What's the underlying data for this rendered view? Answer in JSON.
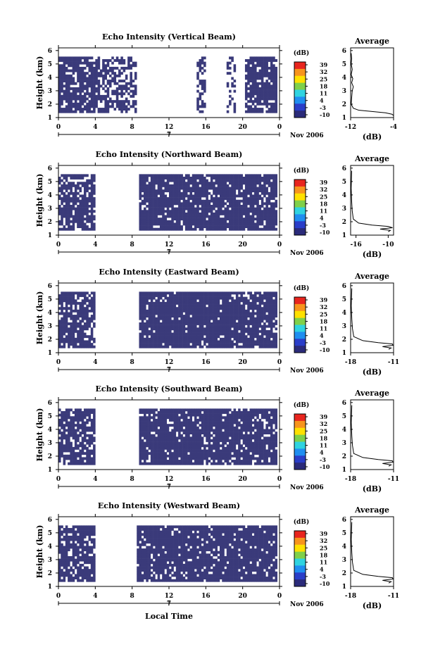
{
  "chart_data": {
    "type": "heatmap",
    "x_axis_label": "Local Time",
    "day_label": "7",
    "month_label": "Nov 2006",
    "y_axis_label": "Height (km)",
    "x_ticks": [
      "0",
      "4",
      "8",
      "12",
      "16",
      "20",
      "0"
    ],
    "y_ticks": [
      "1",
      "2",
      "3",
      "4",
      "5",
      "6"
    ],
    "xlim": [
      0,
      24
    ],
    "ylim": [
      1,
      6.2
    ],
    "heatmap_color": "#3a3a7a",
    "colorbar": {
      "label": "(dB)",
      "ticks": [
        "39",
        "32",
        "25",
        "18",
        "11",
        "4",
        "-3",
        "-10"
      ],
      "colors": [
        "#e8251e",
        "#f7941d",
        "#ffe100",
        "#7fd04a",
        "#2fd3e0",
        "#1f8ef0",
        "#2a3ec8",
        "#2b2b7a"
      ]
    },
    "profile_title": "Average",
    "profile_xlabel": "(dB)",
    "panels": [
      {
        "title": "Echo Intensity (Vertical Beam)",
        "profile_xticks": [
          "-12",
          "-4"
        ],
        "profile_xlim": [
          -12,
          -4
        ],
        "profile_curve": [
          [
            -11.9,
            5.8
          ],
          [
            -11.8,
            5.4
          ],
          [
            -11.9,
            5.0
          ],
          [
            -11.7,
            4.6
          ],
          [
            -11.9,
            4.2
          ],
          [
            -11.6,
            3.9
          ],
          [
            -11.8,
            3.6
          ],
          [
            -11.5,
            3.3
          ],
          [
            -11.7,
            3.0
          ],
          [
            -11.8,
            2.5
          ],
          [
            -11.9,
            2.0
          ],
          [
            -11.5,
            1.7
          ],
          [
            -10.5,
            1.55
          ],
          [
            -8.0,
            1.45
          ],
          [
            -5.5,
            1.35
          ],
          [
            -4.3,
            1.25
          ],
          [
            -4.0,
            1.15
          ]
        ],
        "segments": [
          [
            0,
            4.5,
            0.84
          ],
          [
            4.5,
            8.5,
            0.6
          ],
          [
            14.9,
            16.1,
            0.55
          ],
          [
            18.3,
            19.2,
            0.35
          ],
          [
            20.3,
            23.8,
            0.82
          ]
        ]
      },
      {
        "title": "Echo Intensity (Northward Beam)",
        "profile_xticks": [
          "-16",
          "-10"
        ],
        "profile_xlim": [
          -17,
          -9
        ],
        "profile_curve": [
          [
            -16.8,
            5.8
          ],
          [
            -16.9,
            4.5
          ],
          [
            -16.8,
            3.5
          ],
          [
            -16.7,
            2.8
          ],
          [
            -16.5,
            2.2
          ],
          [
            -15.5,
            1.9
          ],
          [
            -13.0,
            1.75
          ],
          [
            -10.0,
            1.65
          ],
          [
            -9.2,
            1.55
          ],
          [
            -11.5,
            1.45
          ],
          [
            -9.6,
            1.35
          ],
          [
            -10.0,
            1.25
          ]
        ],
        "segments": [
          [
            0,
            4.1,
            0.78
          ],
          [
            8.8,
            23.8,
            0.9
          ]
        ]
      },
      {
        "title": "Echo Intensity (Eastward Beam)",
        "profile_xticks": [
          "-18",
          "-11"
        ],
        "profile_xlim": [
          -18,
          -11
        ],
        "profile_curve": [
          [
            -17.8,
            5.8
          ],
          [
            -17.9,
            4.5
          ],
          [
            -17.8,
            3.5
          ],
          [
            -17.7,
            2.8
          ],
          [
            -17.5,
            2.2
          ],
          [
            -16.0,
            1.9
          ],
          [
            -13.5,
            1.75
          ],
          [
            -11.2,
            1.65
          ],
          [
            -11.1,
            1.55
          ],
          [
            -12.8,
            1.45
          ],
          [
            -11.4,
            1.35
          ],
          [
            -11.8,
            1.25
          ]
        ],
        "segments": [
          [
            0,
            4.1,
            0.8
          ],
          [
            8.8,
            23.8,
            0.92
          ]
        ]
      },
      {
        "title": "Echo Intensity (Southward Beam)",
        "profile_xticks": [
          "-18",
          "-11"
        ],
        "profile_xlim": [
          -18,
          -11
        ],
        "profile_curve": [
          [
            -17.8,
            5.8
          ],
          [
            -17.9,
            4.5
          ],
          [
            -17.8,
            3.5
          ],
          [
            -17.7,
            2.8
          ],
          [
            -17.5,
            2.2
          ],
          [
            -16.0,
            1.9
          ],
          [
            -13.5,
            1.75
          ],
          [
            -11.2,
            1.65
          ],
          [
            -11.1,
            1.55
          ],
          [
            -12.8,
            1.45
          ],
          [
            -11.4,
            1.35
          ],
          [
            -11.8,
            1.25
          ]
        ],
        "segments": [
          [
            0,
            4.1,
            0.85
          ],
          [
            8.8,
            23.8,
            0.9
          ]
        ]
      },
      {
        "title": "Echo Intensity (Westward Beam)",
        "profile_xticks": [
          "-18",
          "-11"
        ],
        "profile_xlim": [
          -18,
          -11
        ],
        "profile_curve": [
          [
            -17.8,
            5.8
          ],
          [
            -17.9,
            4.5
          ],
          [
            -17.8,
            3.5
          ],
          [
            -17.7,
            2.8
          ],
          [
            -17.5,
            2.2
          ],
          [
            -16.0,
            1.9
          ],
          [
            -13.5,
            1.75
          ],
          [
            -11.2,
            1.65
          ],
          [
            -11.1,
            1.55
          ],
          [
            -12.8,
            1.45
          ],
          [
            -11.4,
            1.35
          ],
          [
            -11.8,
            1.25
          ]
        ],
        "segments": [
          [
            0,
            4.1,
            0.82
          ],
          [
            8.5,
            23.8,
            0.88
          ]
        ]
      }
    ]
  }
}
